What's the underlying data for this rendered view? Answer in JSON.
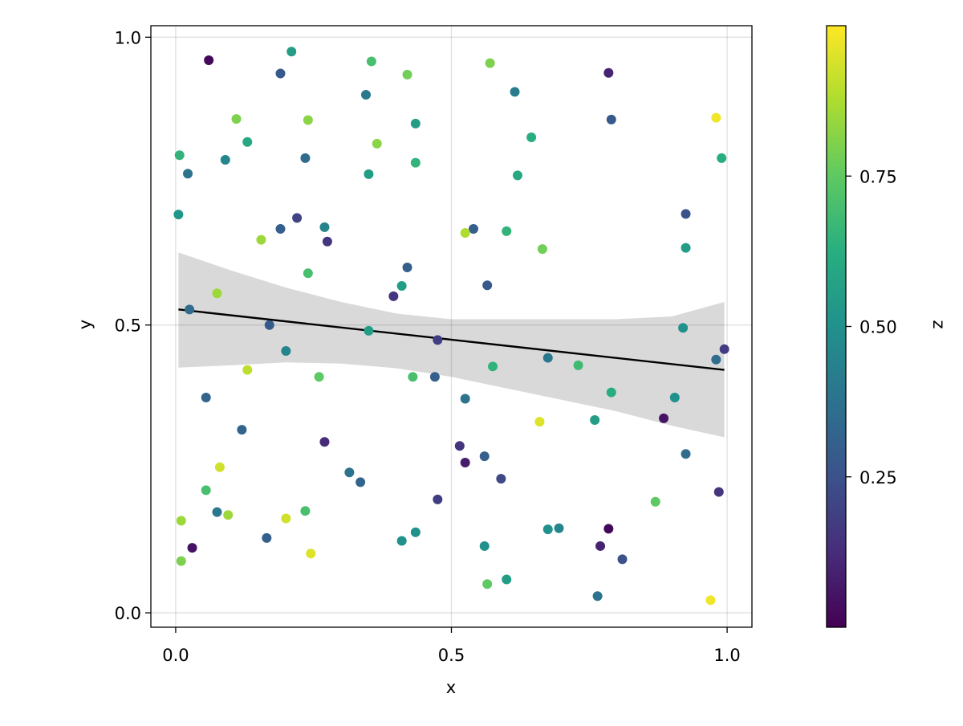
{
  "chart_data": {
    "type": "scatter",
    "title": "",
    "xlabel": "x",
    "ylabel": "y",
    "xlim": [
      -0.045,
      1.045
    ],
    "ylim": [
      -0.025,
      1.02
    ],
    "x_ticks": [
      0.0,
      0.5,
      1.0
    ],
    "x_tick_labels": [
      "0.0",
      "0.5",
      "1.0"
    ],
    "y_ticks": [
      0.0,
      0.5,
      1.0
    ],
    "y_tick_labels": [
      "0.0",
      "0.5",
      "1.0"
    ],
    "grid": true,
    "colorbar": {
      "label": "z",
      "range": [
        0.0,
        1.0
      ],
      "ticks": [
        0.25,
        0.5,
        0.75
      ],
      "tick_labels": [
        "0.25",
        "0.50",
        "0.75"
      ],
      "colormap": "viridis"
    },
    "fit_line": {
      "x": [
        0.005,
        0.995
      ],
      "y": [
        0.527,
        0.422
      ]
    },
    "confidence_band": {
      "x": [
        0.005,
        0.1,
        0.2,
        0.3,
        0.4,
        0.5,
        0.6,
        0.7,
        0.8,
        0.9,
        0.995
      ],
      "upper": [
        0.626,
        0.595,
        0.565,
        0.54,
        0.52,
        0.51,
        0.51,
        0.51,
        0.51,
        0.515,
        0.54
      ],
      "lower": [
        0.426,
        0.43,
        0.435,
        0.433,
        0.425,
        0.41,
        0.39,
        0.37,
        0.35,
        0.325,
        0.305
      ]
    },
    "points": [
      {
        "x": 0.06,
        "y": 0.96,
        "z": 0.02
      },
      {
        "x": 0.21,
        "y": 0.975,
        "z": 0.55
      },
      {
        "x": 0.355,
        "y": 0.958,
        "z": 0.7
      },
      {
        "x": 0.57,
        "y": 0.955,
        "z": 0.8
      },
      {
        "x": 0.19,
        "y": 0.937,
        "z": 0.28
      },
      {
        "x": 0.42,
        "y": 0.935,
        "z": 0.78
      },
      {
        "x": 0.785,
        "y": 0.938,
        "z": 0.1
      },
      {
        "x": 0.345,
        "y": 0.9,
        "z": 0.4
      },
      {
        "x": 0.615,
        "y": 0.905,
        "z": 0.42
      },
      {
        "x": 0.11,
        "y": 0.858,
        "z": 0.8
      },
      {
        "x": 0.24,
        "y": 0.856,
        "z": 0.82
      },
      {
        "x": 0.435,
        "y": 0.85,
        "z": 0.55
      },
      {
        "x": 0.79,
        "y": 0.857,
        "z": 0.28
      },
      {
        "x": 0.98,
        "y": 0.86,
        "z": 0.98
      },
      {
        "x": 0.13,
        "y": 0.818,
        "z": 0.6
      },
      {
        "x": 0.365,
        "y": 0.815,
        "z": 0.82
      },
      {
        "x": 0.645,
        "y": 0.826,
        "z": 0.62
      },
      {
        "x": 0.007,
        "y": 0.795,
        "z": 0.65
      },
      {
        "x": 0.09,
        "y": 0.787,
        "z": 0.45
      },
      {
        "x": 0.235,
        "y": 0.79,
        "z": 0.35
      },
      {
        "x": 0.435,
        "y": 0.782,
        "z": 0.65
      },
      {
        "x": 0.99,
        "y": 0.79,
        "z": 0.62
      },
      {
        "x": 0.022,
        "y": 0.763,
        "z": 0.38
      },
      {
        "x": 0.35,
        "y": 0.762,
        "z": 0.55
      },
      {
        "x": 0.62,
        "y": 0.76,
        "z": 0.6
      },
      {
        "x": 0.005,
        "y": 0.692,
        "z": 0.52
      },
      {
        "x": 0.22,
        "y": 0.686,
        "z": 0.2
      },
      {
        "x": 0.925,
        "y": 0.693,
        "z": 0.25
      },
      {
        "x": 0.19,
        "y": 0.667,
        "z": 0.3
      },
      {
        "x": 0.27,
        "y": 0.67,
        "z": 0.45
      },
      {
        "x": 0.54,
        "y": 0.667,
        "z": 0.3
      },
      {
        "x": 0.525,
        "y": 0.66,
        "z": 0.88
      },
      {
        "x": 0.6,
        "y": 0.663,
        "z": 0.65
      },
      {
        "x": 0.155,
        "y": 0.648,
        "z": 0.85
      },
      {
        "x": 0.275,
        "y": 0.645,
        "z": 0.15
      },
      {
        "x": 0.665,
        "y": 0.632,
        "z": 0.78
      },
      {
        "x": 0.925,
        "y": 0.634,
        "z": 0.55
      },
      {
        "x": 0.24,
        "y": 0.59,
        "z": 0.7
      },
      {
        "x": 0.42,
        "y": 0.6,
        "z": 0.3
      },
      {
        "x": 0.41,
        "y": 0.568,
        "z": 0.55
      },
      {
        "x": 0.565,
        "y": 0.569,
        "z": 0.28
      },
      {
        "x": 0.075,
        "y": 0.555,
        "z": 0.85
      },
      {
        "x": 0.395,
        "y": 0.55,
        "z": 0.15
      },
      {
        "x": 0.025,
        "y": 0.527,
        "z": 0.35
      },
      {
        "x": 0.17,
        "y": 0.5,
        "z": 0.28
      },
      {
        "x": 0.35,
        "y": 0.49,
        "z": 0.55
      },
      {
        "x": 0.92,
        "y": 0.495,
        "z": 0.5
      },
      {
        "x": 0.475,
        "y": 0.474,
        "z": 0.18
      },
      {
        "x": 0.2,
        "y": 0.455,
        "z": 0.45
      },
      {
        "x": 0.675,
        "y": 0.443,
        "z": 0.4
      },
      {
        "x": 0.98,
        "y": 0.44,
        "z": 0.35
      },
      {
        "x": 0.995,
        "y": 0.458,
        "z": 0.18
      },
      {
        "x": 0.575,
        "y": 0.428,
        "z": 0.65
      },
      {
        "x": 0.73,
        "y": 0.43,
        "z": 0.68
      },
      {
        "x": 0.13,
        "y": 0.422,
        "z": 0.9
      },
      {
        "x": 0.26,
        "y": 0.41,
        "z": 0.75
      },
      {
        "x": 0.43,
        "y": 0.41,
        "z": 0.7
      },
      {
        "x": 0.47,
        "y": 0.41,
        "z": 0.3
      },
      {
        "x": 0.79,
        "y": 0.383,
        "z": 0.62
      },
      {
        "x": 0.055,
        "y": 0.374,
        "z": 0.32
      },
      {
        "x": 0.525,
        "y": 0.372,
        "z": 0.38
      },
      {
        "x": 0.905,
        "y": 0.374,
        "z": 0.5
      },
      {
        "x": 0.66,
        "y": 0.332,
        "z": 0.95
      },
      {
        "x": 0.76,
        "y": 0.335,
        "z": 0.55
      },
      {
        "x": 0.885,
        "y": 0.338,
        "z": 0.05
      },
      {
        "x": 0.12,
        "y": 0.318,
        "z": 0.32
      },
      {
        "x": 0.27,
        "y": 0.297,
        "z": 0.12
      },
      {
        "x": 0.515,
        "y": 0.29,
        "z": 0.15
      },
      {
        "x": 0.56,
        "y": 0.272,
        "z": 0.3
      },
      {
        "x": 0.925,
        "y": 0.276,
        "z": 0.35
      },
      {
        "x": 0.525,
        "y": 0.261,
        "z": 0.08
      },
      {
        "x": 0.08,
        "y": 0.253,
        "z": 0.93
      },
      {
        "x": 0.315,
        "y": 0.244,
        "z": 0.38
      },
      {
        "x": 0.335,
        "y": 0.227,
        "z": 0.32
      },
      {
        "x": 0.59,
        "y": 0.233,
        "z": 0.22
      },
      {
        "x": 0.055,
        "y": 0.213,
        "z": 0.7
      },
      {
        "x": 0.985,
        "y": 0.21,
        "z": 0.15
      },
      {
        "x": 0.475,
        "y": 0.197,
        "z": 0.18
      },
      {
        "x": 0.87,
        "y": 0.193,
        "z": 0.75
      },
      {
        "x": 0.075,
        "y": 0.175,
        "z": 0.4
      },
      {
        "x": 0.095,
        "y": 0.17,
        "z": 0.85
      },
      {
        "x": 0.235,
        "y": 0.177,
        "z": 0.7
      },
      {
        "x": 0.01,
        "y": 0.16,
        "z": 0.85
      },
      {
        "x": 0.2,
        "y": 0.164,
        "z": 0.93
      },
      {
        "x": 0.675,
        "y": 0.145,
        "z": 0.5
      },
      {
        "x": 0.695,
        "y": 0.147,
        "z": 0.45
      },
      {
        "x": 0.785,
        "y": 0.146,
        "z": 0.02
      },
      {
        "x": 0.435,
        "y": 0.14,
        "z": 0.5
      },
      {
        "x": 0.165,
        "y": 0.13,
        "z": 0.3
      },
      {
        "x": 0.41,
        "y": 0.125,
        "z": 0.5
      },
      {
        "x": 0.03,
        "y": 0.113,
        "z": 0.05
      },
      {
        "x": 0.56,
        "y": 0.116,
        "z": 0.5
      },
      {
        "x": 0.77,
        "y": 0.116,
        "z": 0.1
      },
      {
        "x": 0.245,
        "y": 0.103,
        "z": 0.95
      },
      {
        "x": 0.01,
        "y": 0.09,
        "z": 0.8
      },
      {
        "x": 0.81,
        "y": 0.093,
        "z": 0.25
      },
      {
        "x": 0.6,
        "y": 0.058,
        "z": 0.55
      },
      {
        "x": 0.565,
        "y": 0.05,
        "z": 0.75
      },
      {
        "x": 0.765,
        "y": 0.029,
        "z": 0.38
      },
      {
        "x": 0.97,
        "y": 0.022,
        "z": 0.98
      }
    ]
  }
}
